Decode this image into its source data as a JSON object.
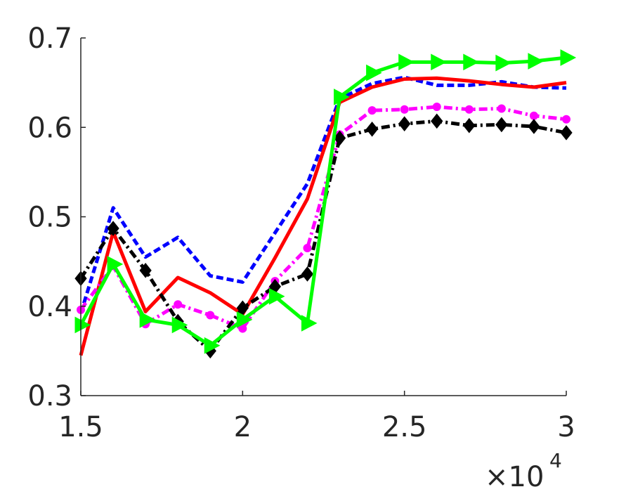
{
  "chart_data": {
    "type": "line",
    "title": "",
    "xlabel": "",
    "ylabel": "",
    "x_multiplier": {
      "base": "×10",
      "exponent": "4"
    },
    "xlim": [
      1.5,
      3.0
    ],
    "ylim": [
      0.3,
      0.7
    ],
    "xticks": [
      1.5,
      2.0,
      2.5,
      3.0
    ],
    "xtick_labels": [
      "1.5",
      "2",
      "2.5",
      "3"
    ],
    "yticks": [
      0.3,
      0.4,
      0.5,
      0.6,
      0.7
    ],
    "ytick_labels": [
      "0.3",
      "0.4",
      "0.5",
      "0.6",
      "0.7"
    ],
    "grid": false,
    "legend": "none",
    "x": [
      1.5,
      1.6,
      1.7,
      1.8,
      1.9,
      2.0,
      2.1,
      2.2,
      2.3,
      2.4,
      2.5,
      2.6,
      2.7,
      2.8,
      2.9,
      3.0
    ],
    "series": [
      {
        "color": "#0000ff",
        "style": "dashed",
        "marker": "none",
        "values": [
          0.392,
          0.51,
          0.455,
          0.477,
          0.434,
          0.427,
          0.482,
          0.537,
          0.632,
          0.649,
          0.656,
          0.647,
          0.647,
          0.651,
          0.645,
          0.644
        ]
      },
      {
        "color": "#ff0000",
        "style": "solid",
        "marker": "none",
        "values": [
          0.345,
          0.483,
          0.394,
          0.432,
          0.415,
          0.391,
          0.454,
          0.52,
          0.628,
          0.645,
          0.654,
          0.655,
          0.652,
          0.648,
          0.645,
          0.65
        ]
      },
      {
        "color": "#ff00ff",
        "style": "dashdot",
        "marker": "circle",
        "values": [
          0.396,
          0.445,
          0.38,
          0.402,
          0.39,
          0.375,
          0.428,
          0.465,
          0.592,
          0.619,
          0.62,
          0.623,
          0.62,
          0.621,
          0.613,
          0.609
        ]
      },
      {
        "color": "#000000",
        "style": "dashdot",
        "marker": "diamond",
        "values": [
          0.431,
          0.487,
          0.44,
          0.383,
          0.35,
          0.398,
          0.422,
          0.436,
          0.588,
          0.598,
          0.604,
          0.607,
          0.602,
          0.603,
          0.601,
          0.594
        ]
      },
      {
        "color": "#00ff00",
        "style": "solid",
        "marker": "triangle-right",
        "values": [
          0.379,
          0.447,
          0.385,
          0.379,
          0.356,
          0.385,
          0.411,
          0.381,
          0.634,
          0.661,
          0.673,
          0.673,
          0.673,
          0.672,
          0.674,
          0.678
        ]
      }
    ]
  }
}
